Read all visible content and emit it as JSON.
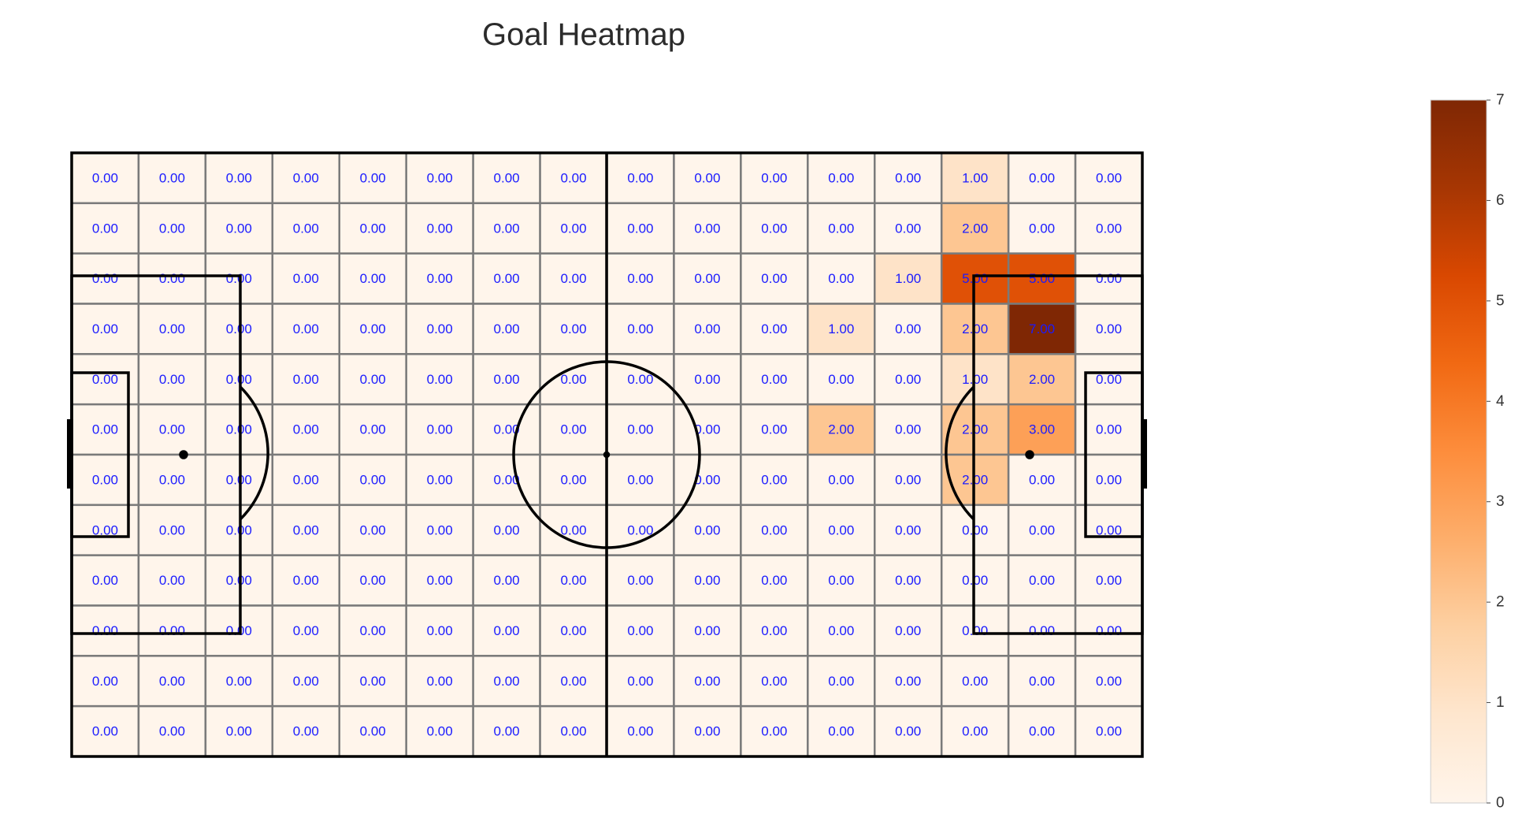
{
  "chart_data": {
    "type": "heatmap",
    "title": "Goal Heatmap",
    "rows": 12,
    "cols": 16,
    "value_format": "0.00",
    "values": [
      [
        0,
        0,
        0,
        0,
        0,
        0,
        0,
        0,
        0,
        0,
        0,
        0,
        0,
        1,
        0,
        0
      ],
      [
        0,
        0,
        0,
        0,
        0,
        0,
        0,
        0,
        0,
        0,
        0,
        0,
        0,
        2,
        0,
        0
      ],
      [
        0,
        0,
        0,
        0,
        0,
        0,
        0,
        0,
        0,
        0,
        0,
        0,
        1,
        5,
        5,
        0
      ],
      [
        0,
        0,
        0,
        0,
        0,
        0,
        0,
        0,
        0,
        0,
        0,
        1,
        0,
        2,
        7,
        0
      ],
      [
        0,
        0,
        0,
        0,
        0,
        0,
        0,
        0,
        0,
        0,
        0,
        0,
        0,
        1,
        2,
        0
      ],
      [
        0,
        0,
        0,
        0,
        0,
        0,
        0,
        0,
        0,
        0,
        0,
        2,
        0,
        2,
        3,
        0
      ],
      [
        0,
        0,
        0,
        0,
        0,
        0,
        0,
        0,
        0,
        0,
        0,
        0,
        0,
        2,
        0,
        0
      ],
      [
        0,
        0,
        0,
        0,
        0,
        0,
        0,
        0,
        0,
        0,
        0,
        0,
        0,
        0,
        0,
        0
      ],
      [
        0,
        0,
        0,
        0,
        0,
        0,
        0,
        0,
        0,
        0,
        0,
        0,
        0,
        0,
        0,
        0
      ],
      [
        0,
        0,
        0,
        0,
        0,
        0,
        0,
        0,
        0,
        0,
        0,
        0,
        0,
        0,
        0,
        0
      ],
      [
        0,
        0,
        0,
        0,
        0,
        0,
        0,
        0,
        0,
        0,
        0,
        0,
        0,
        0,
        0,
        0
      ],
      [
        0,
        0,
        0,
        0,
        0,
        0,
        0,
        0,
        0,
        0,
        0,
        0,
        0,
        0,
        0,
        0
      ]
    ],
    "colorbar": {
      "min": 0,
      "max": 7,
      "ticks": [
        0,
        1,
        2,
        3,
        4,
        5,
        6,
        7
      ],
      "colormap": "Oranges",
      "colors": [
        "#fff5eb",
        "#fee6ce",
        "#fdd0a2",
        "#fdae6b",
        "#fd8d3c",
        "#f16913",
        "#d94801",
        "#a63603",
        "#7f2704"
      ]
    },
    "label_color": "#1a1aff",
    "grid_line_color": "#7a7a7a",
    "pitch_line_color": "#000000"
  }
}
